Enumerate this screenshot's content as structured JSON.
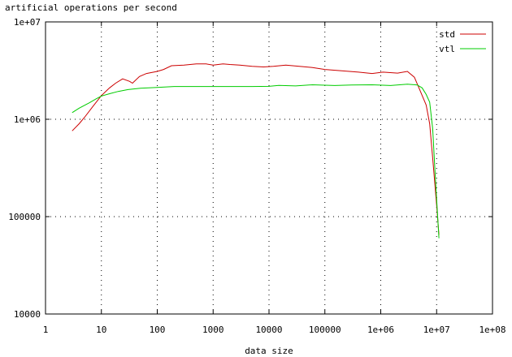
{
  "chart_data": {
    "type": "line",
    "title": "artificial operations per second",
    "xlabel": "data size",
    "ylabel": "",
    "xscale": "log",
    "yscale": "log",
    "xlim": [
      1,
      100000000
    ],
    "ylim": [
      10000,
      10000000
    ],
    "grid": true,
    "legend_position": "top-right",
    "xticks": [
      {
        "value": 1,
        "label": "1"
      },
      {
        "value": 10,
        "label": "10"
      },
      {
        "value": 100,
        "label": "100"
      },
      {
        "value": 1000,
        "label": "1000"
      },
      {
        "value": 10000,
        "label": "10000"
      },
      {
        "value": 100000,
        "label": "100000"
      },
      {
        "value": 1000000,
        "label": "1e+06"
      },
      {
        "value": 10000000,
        "label": "1e+07"
      },
      {
        "value": 100000000,
        "label": "1e+08"
      }
    ],
    "yticks": [
      {
        "value": 10000,
        "label": "10000"
      },
      {
        "value": 100000,
        "label": "100000"
      },
      {
        "value": 1000000,
        "label": "1e+06"
      },
      {
        "value": 10000000,
        "label": "1e+07"
      }
    ],
    "series": [
      {
        "name": "std",
        "color": "#cc0000",
        "points": [
          [
            3,
            760000
          ],
          [
            4,
            900000
          ],
          [
            5,
            1050000
          ],
          [
            7,
            1350000
          ],
          [
            10,
            1750000
          ],
          [
            14,
            2100000
          ],
          [
            18,
            2350000
          ],
          [
            24,
            2600000
          ],
          [
            32,
            2450000
          ],
          [
            36,
            2350000
          ],
          [
            48,
            2750000
          ],
          [
            64,
            2950000
          ],
          [
            100,
            3100000
          ],
          [
            130,
            3250000
          ],
          [
            180,
            3550000
          ],
          [
            300,
            3600000
          ],
          [
            500,
            3700000
          ],
          [
            750,
            3700000
          ],
          [
            1000,
            3600000
          ],
          [
            1500,
            3700000
          ],
          [
            2000,
            3650000
          ],
          [
            3000,
            3600000
          ],
          [
            5000,
            3500000
          ],
          [
            8000,
            3450000
          ],
          [
            12000,
            3500000
          ],
          [
            20000,
            3600000
          ],
          [
            35000,
            3500000
          ],
          [
            60000,
            3400000
          ],
          [
            100000,
            3250000
          ],
          [
            200000,
            3150000
          ],
          [
            400000,
            3050000
          ],
          [
            700000,
            2950000
          ],
          [
            1100000,
            3050000
          ],
          [
            2000000,
            2980000
          ],
          [
            3000000,
            3100000
          ],
          [
            4000000,
            2700000
          ],
          [
            5000000,
            2000000
          ],
          [
            6500000,
            1400000
          ],
          [
            7500000,
            900000
          ],
          [
            8500000,
            400000
          ],
          [
            10000000,
            130000
          ],
          [
            11000000,
            65000
          ]
        ]
      },
      {
        "name": "vtl",
        "color": "#00cc00",
        "points": [
          [
            3,
            1170000
          ],
          [
            4,
            1300000
          ],
          [
            6,
            1470000
          ],
          [
            8,
            1620000
          ],
          [
            10,
            1730000
          ],
          [
            14,
            1830000
          ],
          [
            20,
            1930000
          ],
          [
            30,
            2020000
          ],
          [
            50,
            2080000
          ],
          [
            100,
            2120000
          ],
          [
            200,
            2170000
          ],
          [
            500,
            2170000
          ],
          [
            1000,
            2170000
          ],
          [
            2000,
            2170000
          ],
          [
            5000,
            2170000
          ],
          [
            10000,
            2180000
          ],
          [
            15000,
            2230000
          ],
          [
            30000,
            2200000
          ],
          [
            60000,
            2260000
          ],
          [
            100000,
            2240000
          ],
          [
            150000,
            2220000
          ],
          [
            300000,
            2250000
          ],
          [
            700000,
            2260000
          ],
          [
            1500000,
            2220000
          ],
          [
            3000000,
            2290000
          ],
          [
            4500000,
            2250000
          ],
          [
            5500000,
            2100000
          ],
          [
            6500000,
            1800000
          ],
          [
            7500000,
            1500000
          ],
          [
            8500000,
            800000
          ],
          [
            9500000,
            250000
          ],
          [
            11000000,
            60000
          ]
        ]
      }
    ]
  }
}
